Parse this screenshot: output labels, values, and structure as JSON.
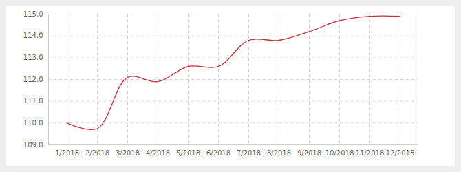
{
  "chart_data": {
    "type": "line",
    "categories": [
      "1/2018",
      "2/2018",
      "3/2018",
      "4/2018",
      "5/2018",
      "6/2018",
      "7/2018",
      "8/2018",
      "9/2018",
      "10/2018",
      "11/2018",
      "12/2018"
    ],
    "values": [
      110.0,
      109.75,
      112.1,
      111.9,
      112.6,
      112.6,
      113.8,
      113.8,
      114.2,
      114.7,
      114.9,
      114.9
    ],
    "color": "#c8303a",
    "ylim": [
      109,
      115
    ],
    "yticks": [
      109,
      110,
      111,
      112,
      113,
      114,
      115
    ],
    "grid": true
  }
}
